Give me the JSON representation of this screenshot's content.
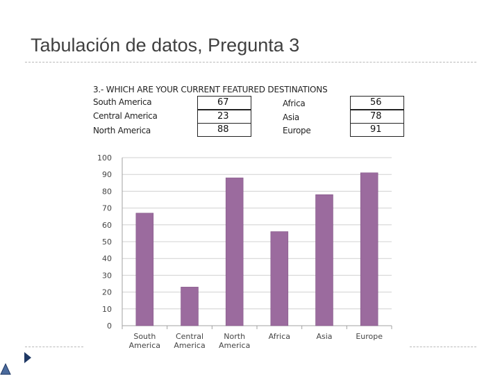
{
  "slide": {
    "title": "Tabulación de datos, Pregunta 3",
    "accent_color": "#1f3864"
  },
  "table": {
    "title": "3.- WHICH ARE YOUR CURRENT FEATURED DESTINATIONS",
    "rows": [
      {
        "left_label": "South  America",
        "left_value": "67",
        "right_label": "Africa",
        "right_value": "56"
      },
      {
        "left_label": "Central America",
        "left_value": "23",
        "right_label": "Asia",
        "right_value": "78"
      },
      {
        "left_label": "North  America",
        "left_value": "88",
        "right_label": "Europe",
        "right_value": "91"
      }
    ]
  },
  "chart_data": {
    "type": "bar",
    "categories": [
      [
        "South",
        "America"
      ],
      [
        "Central",
        "America"
      ],
      [
        "North",
        "America"
      ],
      [
        "Africa"
      ],
      [
        "Asia"
      ],
      [
        "Europe"
      ]
    ],
    "values": [
      67,
      23,
      88,
      56,
      78,
      91
    ],
    "ylim": [
      0,
      100
    ],
    "yticks": [
      0,
      10,
      20,
      30,
      40,
      50,
      60,
      70,
      80,
      90,
      100
    ],
    "bar_color": "#9b6b9e",
    "grid": true
  }
}
